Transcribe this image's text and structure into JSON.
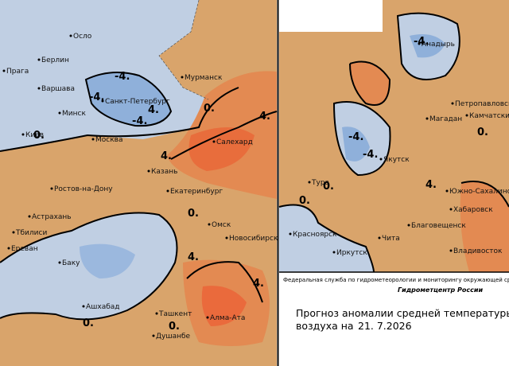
{
  "cities": [
    "Осло",
    "Берлин",
    "Прага",
    "Варшава",
    "Мурманск",
    "Санкт-Петербург",
    "Минск",
    "Киев",
    "Москва",
    "Салехард",
    "Казань",
    "Екатеринбург",
    "Ростов-на-Дону",
    "Астрахань",
    "Омск",
    "Новосибирск",
    "Тбилиси",
    "Ереван",
    "Баку",
    "Ашхабад",
    "Ташкент",
    "Алма-Ата",
    "Душанбе",
    "Анадырь",
    "Петропавловск",
    "Камчатский",
    "Магадан",
    "Якутск",
    "Тура",
    "Южно-Сахалинск",
    "Хабаровск",
    "Благовещенск",
    "Красноярск",
    "Чита",
    "Иркутск",
    "Владивосток"
  ],
  "isoline_labels": [
    "-4.",
    "-4.",
    "4.",
    "-4.",
    "0.",
    "0.",
    "4.",
    "4.",
    "0.",
    "4.",
    "4.",
    "0.",
    "0.",
    "-4.",
    "-4.",
    "-4.",
    "4.",
    "0.",
    "0.",
    "0."
  ],
  "footer": {
    "agency": "Федеральная служба по гидрометеорологии и мониторингу окружающей среды",
    "center": "Гидрометцентр России",
    "title_line1": "Прогноз аномалии средней температуры",
    "title_line2": "воздуха на",
    "date": "21. 7.2026"
  }
}
